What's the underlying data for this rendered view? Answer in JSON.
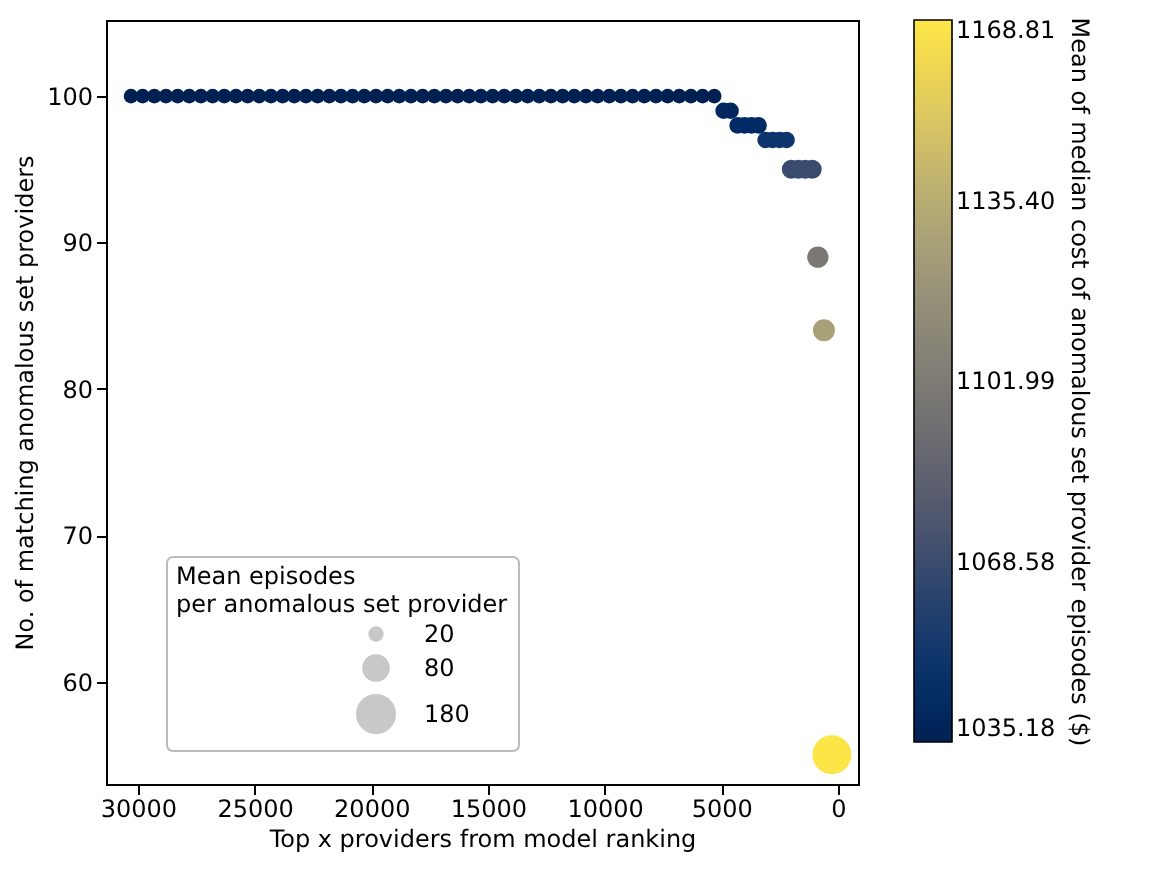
{
  "chart_data": {
    "type": "scatter",
    "xlabel": "Top x providers from model ranking",
    "ylabel": "No. of matching anomalous set providers",
    "legend_title": "Mean episodes\nper anomalous set provider",
    "clabel": "Mean of median cost of anomalous set provider episodes ($)",
    "xlim": [
      31370,
      -860
    ],
    "xticks": [
      30000,
      25000,
      20000,
      15000,
      10000,
      5000,
      0
    ],
    "ylim": [
      53,
      105.2
    ],
    "yticks": [
      60,
      70,
      80,
      90,
      100
    ],
    "clim": [
      1035.18,
      1168.81
    ],
    "cticks": [
      {
        "value": 1035.18,
        "label": "1035.18"
      },
      {
        "value": 1068.58,
        "label": "1068.58"
      },
      {
        "value": 1101.99,
        "label": "1101.99"
      },
      {
        "value": 1135.4,
        "label": "1135.40"
      },
      {
        "value": 1168.81,
        "label": "1168.81"
      }
    ],
    "size_legend": [
      20,
      80,
      180
    ],
    "grid": false,
    "marker": "circle",
    "series": [
      {
        "x": [
          30300,
          29800,
          29300,
          28800,
          28300,
          27800,
          27300,
          26800,
          26300,
          25800,
          25300,
          24800,
          24300,
          23800,
          23300,
          22800,
          22300,
          21800,
          21300,
          20800,
          20300,
          19800,
          19300,
          18800,
          18300,
          17800,
          17300,
          16800,
          16300,
          15800,
          15300,
          14800,
          14300,
          13800,
          13300,
          12800,
          12300,
          11800,
          11300,
          10800,
          10300,
          9800,
          9300,
          8800,
          8300,
          7800,
          7300,
          6800,
          6300,
          5800,
          5300,
          4900,
          4600,
          4300,
          4000,
          3700,
          3400,
          3100,
          2800,
          2500,
          2200,
          2000,
          1700,
          1400,
          1100,
          860,
          600,
          260
        ],
        "values": [
          100,
          100,
          100,
          100,
          100,
          100,
          100,
          100,
          100,
          100,
          100,
          100,
          100,
          100,
          100,
          100,
          100,
          100,
          100,
          100,
          100,
          100,
          100,
          100,
          100,
          100,
          100,
          100,
          100,
          100,
          100,
          100,
          100,
          100,
          100,
          100,
          100,
          100,
          100,
          100,
          100,
          100,
          100,
          100,
          100,
          100,
          100,
          100,
          100,
          100,
          100,
          99,
          99,
          98,
          98,
          98,
          98,
          97,
          97,
          97,
          97,
          95,
          95,
          95,
          95,
          89,
          84,
          55
        ],
        "sizes": [
          28,
          28,
          28,
          28,
          28,
          28,
          28,
          28,
          28,
          28,
          28,
          28,
          28,
          28,
          28,
          28,
          28,
          28,
          28,
          28,
          28,
          28,
          28,
          28,
          28,
          28,
          28,
          28,
          28,
          28,
          28,
          28,
          28,
          28,
          28,
          28,
          28,
          28,
          28,
          28,
          28,
          28,
          28,
          28,
          28,
          28,
          28,
          28,
          28,
          28,
          28,
          36,
          36,
          36,
          36,
          36,
          36,
          36,
          36,
          36,
          36,
          47,
          47,
          47,
          47,
          60,
          64,
          200
        ],
        "cvalues": [
          1035.5,
          1035.5,
          1035.5,
          1035.5,
          1035.5,
          1035.5,
          1035.5,
          1035.5,
          1035.5,
          1035.5,
          1035.5,
          1035.5,
          1035.5,
          1035.5,
          1035.5,
          1035.5,
          1035.5,
          1035.5,
          1035.5,
          1035.5,
          1035.5,
          1035.5,
          1035.5,
          1035.5,
          1035.5,
          1035.5,
          1035.5,
          1035.5,
          1035.5,
          1035.5,
          1035.5,
          1035.5,
          1035.5,
          1035.5,
          1035.5,
          1035.5,
          1035.5,
          1035.5,
          1035.5,
          1035.5,
          1035.5,
          1035.5,
          1035.5,
          1035.5,
          1035.5,
          1035.5,
          1035.5,
          1035.5,
          1035.5,
          1035.5,
          1035.5,
          1040,
          1040,
          1043,
          1043,
          1043,
          1043,
          1050,
          1050,
          1050,
          1050,
          1068,
          1068,
          1068,
          1068,
          1100,
          1128,
          1168.8
        ]
      }
    ]
  }
}
